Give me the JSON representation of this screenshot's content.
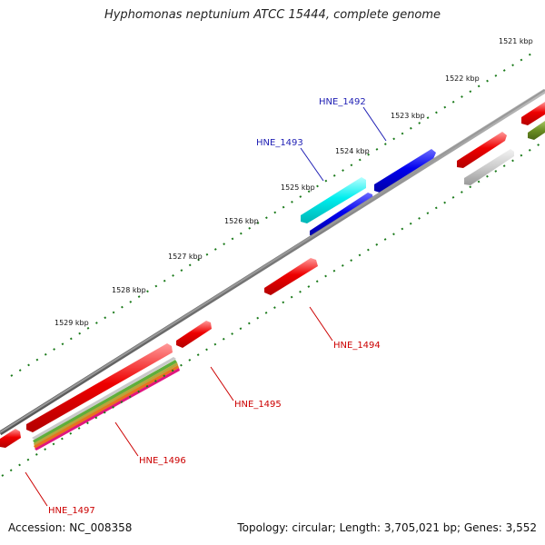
{
  "title": "Hyphomonas neptunium ATCC 15444, complete genome",
  "footer": {
    "accession": "Accession: NC_008358",
    "summary": "Topology: circular; Length: 3,705,021 bp; Genes: 3,552"
  },
  "scale": {
    "labels": [
      "1521 kbp",
      "1522 kbp",
      "1523 kbp",
      "1524 kbp",
      "1525 kbp",
      "1526 kbp",
      "1527 kbp",
      "1528 kbp",
      "1529 kbp"
    ]
  },
  "genes": [
    {
      "name": "HNE_1492",
      "color": "#1f1fb4"
    },
    {
      "name": "HNE_1493",
      "color": "#1f1fb4"
    },
    {
      "name": "HNE_1494",
      "color": "#cc0000"
    },
    {
      "name": "HNE_1495",
      "color": "#cc0000"
    },
    {
      "name": "HNE_1496",
      "color": "#cc0000"
    },
    {
      "name": "HNE_1497",
      "color": "#cc0000"
    }
  ],
  "colors": {
    "forward_cds": "#ee0000",
    "blue_cds": "#0000ee",
    "cyan_cds": "#00eeee",
    "grey_cds": "#cccccc",
    "olive_cds": "#6b8e23",
    "backbone": "#777777",
    "tick": "#1a7a1a"
  }
}
